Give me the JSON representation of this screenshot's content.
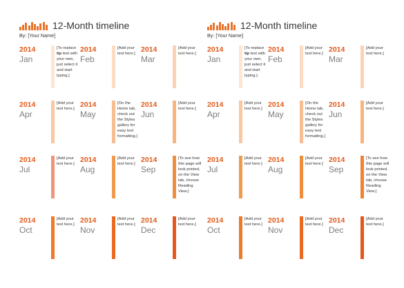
{
  "pages": [
    {
      "title": "12-Month timeline",
      "byline": "By: [Your Name]",
      "months": [
        {
          "year": "2014",
          "month": "Jan",
          "note": "[To replace tip text with your own, just select it and start typing.]",
          "bold": "tip",
          "color": "#fde6d4"
        },
        {
          "year": "2014",
          "month": "Feb",
          "note": "[Add your text here.]",
          "color": "#fcdcc4"
        },
        {
          "year": "2014",
          "month": "Mar",
          "note": "[Add your text here.]",
          "color": "#fbd2b3"
        },
        {
          "year": "2014",
          "month": "Apr",
          "note": "[Add your text here.]",
          "color": "#f9c7a0"
        },
        {
          "year": "2014",
          "month": "May",
          "note": "[On the Home tab, check out the Styles gallery for easy text formatting.]",
          "color": "#f8bd90"
        },
        {
          "year": "2014",
          "month": "Jun",
          "note": "[Add your text here.]",
          "color": "#f7b47f"
        },
        {
          "year": "2014",
          "month": "Jul",
          "note": "[Add your text here.]",
          "color": "#f2937a"
        },
        {
          "year": "2014",
          "month": "Aug",
          "note": "[Add your text here.]",
          "color": "#f09a50"
        },
        {
          "year": "2014",
          "month": "Sep",
          "note": "[To see how this page will look printed, on the View tab, choose Reading View.]",
          "color": "#ee8e3d"
        },
        {
          "year": "2014",
          "month": "Oct",
          "note": "[Add your text here.]",
          "color": "#ec7a2a"
        },
        {
          "year": "2014",
          "month": "Nov",
          "note": "[Add your text here.]",
          "color": "#e96a22"
        },
        {
          "year": "2014",
          "month": "Dec",
          "note": "[Add your text here.]",
          "color": "#e4561c"
        }
      ]
    },
    {
      "title": "12-Month timeline",
      "byline": "By: [Your Name]",
      "months": [
        {
          "year": "2014",
          "month": "Jan",
          "note": "[To replace tip text with your own, just select it and start typing.]",
          "bold": "tip",
          "color": "#fde6d4"
        },
        {
          "year": "2014",
          "month": "Feb",
          "note": "[Add your text here.]",
          "color": "#fcdcc4"
        },
        {
          "year": "2014",
          "month": "Mar",
          "note": "[Add your text here.]",
          "color": "#fbd2b3"
        },
        {
          "year": "2014",
          "month": "Apr",
          "note": "[Add your text here.]",
          "color": "#f9c7a0"
        },
        {
          "year": "2014",
          "month": "May",
          "note": "[On the Home tab, check out the Styles gallery for easy text formatting.]",
          "color": "#f8bd90"
        },
        {
          "year": "2014",
          "month": "Jun",
          "note": "[Add your text here.]",
          "color": "#f7b47f"
        },
        {
          "year": "2014",
          "month": "Jul",
          "note": "[Add your text here.]",
          "color": "#f09a50"
        },
        {
          "year": "2014",
          "month": "Aug",
          "note": "[Add your text here.]",
          "color": "#ee8e3d"
        },
        {
          "year": "2014",
          "month": "Sep",
          "note": "[To see how this page will look printed, on the View tab, choose Reading View.]",
          "color": "#ed8434"
        },
        {
          "year": "2014",
          "month": "Oct",
          "note": "[Add your text here.]",
          "color": "#ec7a2a"
        },
        {
          "year": "2014",
          "month": "Nov",
          "note": "[Add your text here.]",
          "color": "#e96a22"
        },
        {
          "year": "2014",
          "month": "Dec",
          "note": "[Add your text here.]",
          "color": "#e4561c"
        }
      ]
    }
  ],
  "accent_color": "#e8732b",
  "logo_icon": "bar-chart-logo-icon"
}
